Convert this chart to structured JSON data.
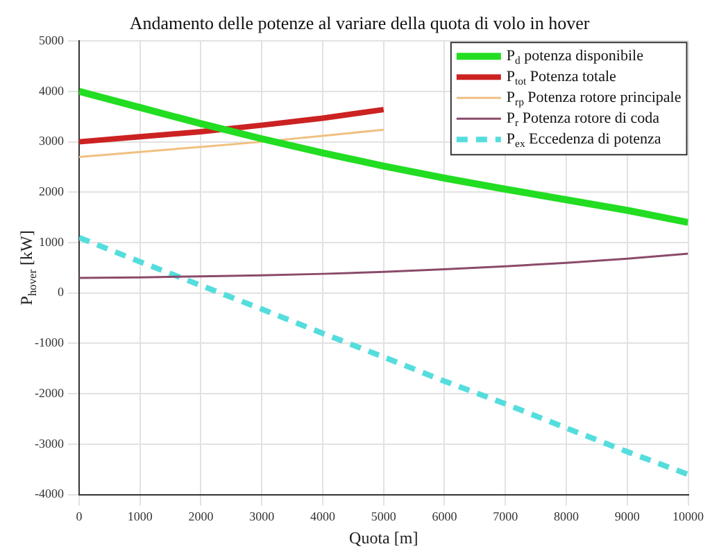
{
  "chart_data": {
    "type": "line",
    "title": "Andamento delle potenze al variare della quota di volo in hover",
    "xlabel": "Quota [m]",
    "ylabel": "P$_{hover}$ [kW]",
    "x": [
      0,
      1000,
      2000,
      3000,
      4000,
      5000,
      6000,
      7000,
      8000,
      9000,
      10000
    ],
    "series": [
      {
        "name": "P$_{d}$ potenza disponibile",
        "color": "#22dd22",
        "values": [
          4000,
          3680,
          3360,
          3060,
          2780,
          2520,
          2280,
          2060,
          1850,
          1640,
          1400
        ]
      },
      {
        "name": "P$_{tot}$ Potenza totale",
        "color": "#cc2222",
        "values": [
          3000,
          3100,
          3200,
          3330,
          3470,
          3640,
          null,
          null,
          null,
          null,
          null
        ]
      },
      {
        "name": "P$_{rp}$ Potenza rotore principale",
        "color": "#f0c080",
        "values": [
          2700,
          2800,
          2900,
          3000,
          3120,
          3240,
          null,
          null,
          null,
          null,
          null
        ]
      },
      {
        "name": "P$_{r}$ Potenza rotore di coda",
        "color": "#8b4a6a",
        "values": [
          300,
          310,
          330,
          350,
          380,
          420,
          470,
          530,
          600,
          680,
          780
        ]
      },
      {
        "name": "P$_{ex}$ Eccedenza di potenza",
        "color": "#55dddd",
        "line_style": "dashed",
        "values": [
          1100,
          620,
          150,
          -320,
          -800,
          -1270,
          -1750,
          -2200,
          -2680,
          -3150,
          -3600
        ]
      }
    ],
    "xlim": [
      0,
      10000
    ],
    "xticks": [
      0,
      1000,
      2000,
      3000,
      4000,
      5000,
      6000,
      7000,
      8000,
      9000,
      10000
    ],
    "ylim": [
      -4000,
      5000
    ],
    "yticks": [
      -4000,
      -3000,
      -2000,
      -1000,
      0,
      1000,
      2000,
      3000,
      4000,
      5000
    ],
    "grid": true,
    "legend": "top right",
    "marker": "none",
    "line_style": "solid"
  }
}
